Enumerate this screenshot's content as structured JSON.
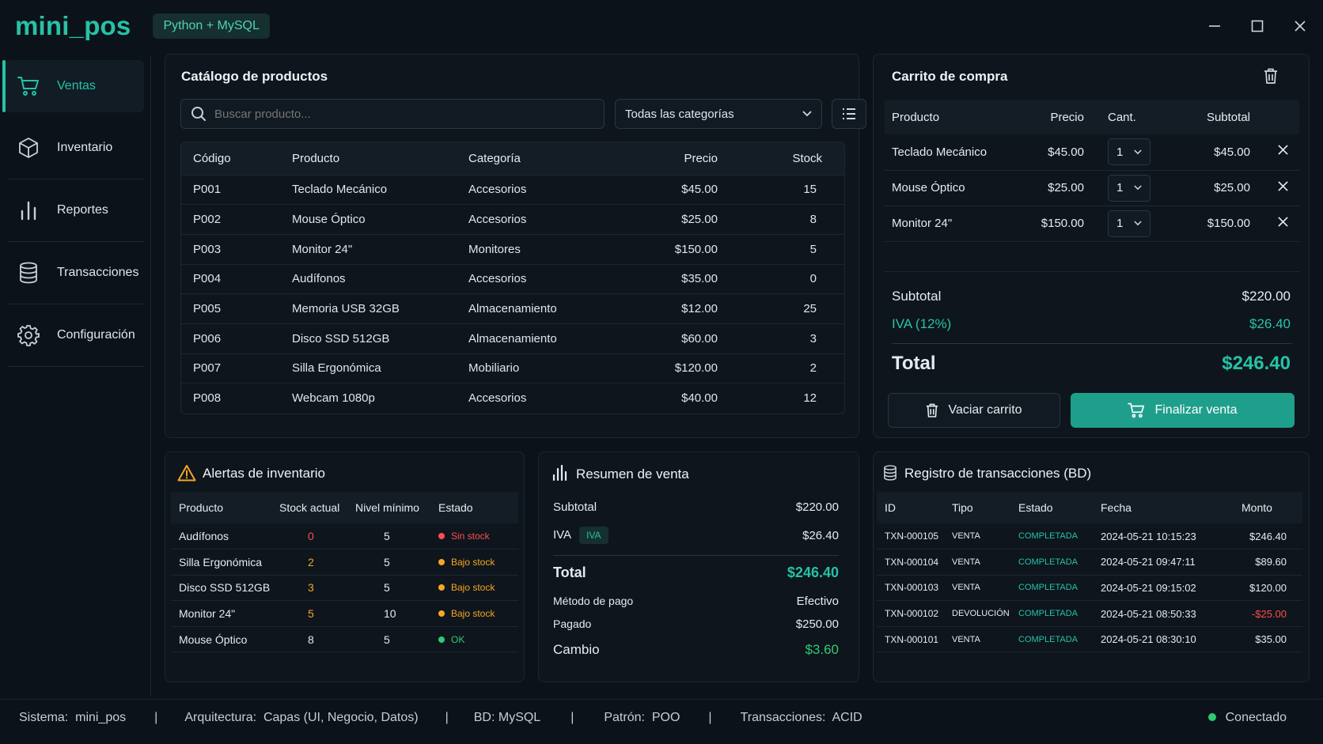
{
  "app": {
    "title": "mini_pos",
    "badge": "Python + MySQL"
  },
  "colors": {
    "accent": "#26c2a6",
    "ok": "#2ecc71",
    "warning": "#f5a623",
    "danger": "#ff4d4d",
    "background": "#0c1219"
  },
  "sidebar": {
    "items": [
      {
        "label": "Ventas",
        "icon": "cart-icon",
        "active": true
      },
      {
        "label": "Inventario",
        "icon": "box-icon"
      },
      {
        "label": "Reportes",
        "icon": "bar-chart-icon"
      },
      {
        "label": "Transacciones",
        "icon": "database-icon"
      },
      {
        "label": "Configuración",
        "icon": "gear-icon"
      }
    ]
  },
  "catalog": {
    "title": "Catálogo de productos",
    "search_placeholder": "Buscar producto...",
    "category_filter": "Todas las categorías",
    "headers": [
      "Código",
      "Producto",
      "Categoría",
      "Precio",
      "Stock"
    ],
    "rows": [
      {
        "code": "P001",
        "name": "Teclado Mecánico",
        "category": "Accesorios",
        "price": "$45.00",
        "stock": "15",
        "level": "g"
      },
      {
        "code": "P002",
        "name": "Mouse Óptico",
        "category": "Accesorios",
        "price": "$25.00",
        "stock": "8",
        "level": "o"
      },
      {
        "code": "P003",
        "name": "Monitor 24\"",
        "category": "Monitores",
        "price": "$150.00",
        "stock": "5",
        "level": "o"
      },
      {
        "code": "P004",
        "name": "Audífonos",
        "category": "Accesorios",
        "price": "$35.00",
        "stock": "0",
        "level": "r"
      },
      {
        "code": "P005",
        "name": "Memoria USB 32GB",
        "category": "Almacenamiento",
        "price": "$12.00",
        "stock": "25",
        "level": "g"
      },
      {
        "code": "P006",
        "name": "Disco SSD 512GB",
        "category": "Almacenamiento",
        "price": "$60.00",
        "stock": "3",
        "level": "o"
      },
      {
        "code": "P007",
        "name": "Silla Ergonómica",
        "category": "Mobiliario",
        "price": "$120.00",
        "stock": "2",
        "level": "o"
      },
      {
        "code": "P008",
        "name": "Webcam 1080p",
        "category": "Accesorios",
        "price": "$40.00",
        "stock": "12",
        "level": "g"
      }
    ]
  },
  "cart": {
    "title": "Carrito de compra",
    "headers": [
      "Producto",
      "Precio",
      "Cant.",
      "Subtotal"
    ],
    "items": [
      {
        "name": "Teclado Mecánico",
        "price": "$45.00",
        "qty": "1",
        "subtotal": "$45.00"
      },
      {
        "name": "Mouse Óptico",
        "price": "$25.00",
        "qty": "1",
        "subtotal": "$25.00"
      },
      {
        "name": "Monitor 24\"",
        "price": "$150.00",
        "qty": "1",
        "subtotal": "$150.00"
      }
    ],
    "subtotal_label": "Subtotal",
    "subtotal": "$220.00",
    "iva_label": "IVA (12%)",
    "iva": "$26.40",
    "total_label": "Total",
    "total": "$246.40",
    "clear_label": "Vaciar carrito",
    "checkout_label": "Finalizar venta"
  },
  "alerts": {
    "title": "Alertas de inventario",
    "headers": [
      "Producto",
      "Stock actual",
      "Nivel mínimo",
      "Estado"
    ],
    "rows": [
      {
        "name": "Audífonos",
        "stock": "0",
        "min": "5",
        "status": "Sin stock",
        "level": "r"
      },
      {
        "name": "Silla Ergonómica",
        "stock": "2",
        "min": "5",
        "status": "Bajo stock",
        "level": "o"
      },
      {
        "name": "Disco SSD 512GB",
        "stock": "3",
        "min": "5",
        "status": "Bajo stock",
        "level": "o"
      },
      {
        "name": "Monitor 24\"",
        "stock": "5",
        "min": "10",
        "status": "Bajo stock",
        "level": "o"
      },
      {
        "name": "Mouse Óptico",
        "stock": "8",
        "min": "5",
        "status": "OK",
        "level": "g"
      }
    ]
  },
  "summary": {
    "title": "Resumen de venta",
    "subtotal_label": "Subtotal",
    "subtotal": "$220.00",
    "iva_label": "IVA",
    "iva_badge": "IVA",
    "iva": "$26.40",
    "total_label": "Total",
    "total": "$246.40",
    "method_label": "Método de pago",
    "method": "Efectivo",
    "paid_label": "Pagado",
    "paid": "$250.00",
    "change_label": "Cambio",
    "change": "$3.60"
  },
  "transactions": {
    "title": "Registro de transacciones (BD)",
    "headers": [
      "ID",
      "Tipo",
      "Estado",
      "Fecha",
      "Monto"
    ],
    "rows": [
      {
        "id": "TXN-000105",
        "type": "VENTA",
        "status": "COMPLETADA",
        "date": "2024-05-21 10:15:23",
        "amount": "$246.40",
        "neg": false
      },
      {
        "id": "TXN-000104",
        "type": "VENTA",
        "status": "COMPLETADA",
        "date": "2024-05-21 09:47:11",
        "amount": "$89.60",
        "neg": false
      },
      {
        "id": "TXN-000103",
        "type": "VENTA",
        "status": "COMPLETADA",
        "date": "2024-05-21 09:15:02",
        "amount": "$120.00",
        "neg": false
      },
      {
        "id": "TXN-000102",
        "type": "DEVOLUCIÓN",
        "status": "COMPLETADA",
        "date": "2024-05-21 08:50:33",
        "amount": "-$25.00",
        "neg": true
      },
      {
        "id": "TXN-000101",
        "type": "VENTA",
        "status": "COMPLETADA",
        "date": "2024-05-21 08:30:10",
        "amount": "$35.00",
        "neg": false
      }
    ]
  },
  "statusbar": {
    "system_label": "Sistema:",
    "system": "mini_pos",
    "arch_label": "Arquitectura:",
    "arch": "Capas (UI, Negocio, Datos)",
    "db_label": "BD:",
    "db": "MySQL",
    "pattern_label": "Patrón:",
    "pattern": "POO",
    "tx_label": "Transacciones:",
    "tx": "ACID",
    "separator": "|",
    "connection": "Conectado"
  }
}
